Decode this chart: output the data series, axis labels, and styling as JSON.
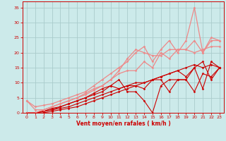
{
  "background_color": "#cceaea",
  "grid_color": "#aacccc",
  "xlabel": "Vent moyen/en rafales ( km/h )",
  "xlabel_color": "#cc0000",
  "tick_color": "#cc0000",
  "xlim": [
    -0.5,
    23.5
  ],
  "ylim": [
    0,
    37
  ],
  "yticks": [
    0,
    5,
    10,
    15,
    20,
    25,
    30,
    35
  ],
  "xticks": [
    0,
    1,
    2,
    3,
    4,
    5,
    6,
    7,
    8,
    9,
    10,
    11,
    12,
    13,
    14,
    15,
    16,
    17,
    18,
    19,
    20,
    21,
    22,
    23
  ],
  "lines": [
    {
      "x": [
        0,
        1,
        2,
        3,
        4,
        5,
        6,
        7,
        8,
        9,
        10,
        11,
        12,
        13,
        14,
        15,
        16,
        17,
        18,
        19,
        20,
        21,
        22,
        23
      ],
      "y": [
        0,
        0,
        0,
        0.5,
        1,
        1.5,
        2,
        3,
        4,
        5,
        6,
        7,
        8,
        9,
        10,
        11,
        12,
        13,
        14,
        15,
        16,
        15,
        16,
        15
      ],
      "color": "#cc0000",
      "lw": 0.8,
      "marker": "D",
      "markersize": 1.5
    },
    {
      "x": [
        0,
        1,
        2,
        3,
        4,
        5,
        6,
        7,
        8,
        9,
        10,
        11,
        12,
        13,
        14,
        15,
        16,
        17,
        18,
        19,
        20,
        21,
        22,
        23
      ],
      "y": [
        0,
        0,
        0.5,
        1,
        1.5,
        2,
        3,
        4,
        5,
        6,
        7,
        8,
        9,
        10,
        10,
        11,
        12,
        13,
        14,
        12,
        15,
        17,
        11,
        15
      ],
      "color": "#cc0000",
      "lw": 0.8,
      "marker": "D",
      "markersize": 1.5
    },
    {
      "x": [
        0,
        1,
        2,
        3,
        4,
        5,
        6,
        7,
        8,
        9,
        10,
        11,
        12,
        13,
        14,
        15,
        16,
        17,
        18,
        19,
        20,
        21,
        22,
        23
      ],
      "y": [
        0,
        0,
        0.5,
        1,
        2,
        3,
        4,
        5,
        6,
        7,
        9,
        11,
        7,
        7,
        4,
        0,
        9,
        11,
        11,
        11,
        7,
        13,
        12,
        15
      ],
      "color": "#cc0000",
      "lw": 0.8,
      "marker": "D",
      "markersize": 1.5
    },
    {
      "x": [
        0,
        1,
        2,
        3,
        4,
        5,
        6,
        7,
        8,
        9,
        10,
        11,
        12,
        13,
        14,
        15,
        16,
        17,
        18,
        19,
        20,
        21,
        22,
        23
      ],
      "y": [
        0,
        0,
        0.5,
        1.5,
        2,
        3,
        4,
        5,
        6.5,
        8,
        9,
        8,
        9,
        9,
        8,
        11,
        11,
        7,
        11,
        11,
        15,
        8,
        17,
        15
      ],
      "color": "#cc0000",
      "lw": 0.8,
      "marker": "D",
      "markersize": 1.5
    },
    {
      "x": [
        0,
        1,
        2,
        3,
        4,
        5,
        6,
        7,
        8,
        9,
        10,
        11,
        12,
        13,
        14,
        15,
        16,
        17,
        18,
        19,
        20,
        21,
        22,
        23
      ],
      "y": [
        4,
        1,
        1,
        2,
        3,
        4,
        5,
        6,
        7.5,
        9,
        11,
        13,
        14,
        14,
        17,
        15,
        20,
        18,
        21,
        21,
        24,
        20,
        25,
        24
      ],
      "color": "#ee8888",
      "lw": 0.9,
      "marker": "D",
      "markersize": 1.5
    },
    {
      "x": [
        0,
        1,
        2,
        3,
        4,
        5,
        6,
        7,
        8,
        9,
        10,
        11,
        12,
        13,
        14,
        15,
        16,
        17,
        18,
        19,
        20,
        21,
        22,
        23
      ],
      "y": [
        4,
        2,
        2.5,
        3,
        4,
        5,
        6,
        7,
        9,
        11,
        13,
        15,
        17,
        20,
        22,
        17,
        21,
        24,
        20,
        24,
        35,
        20,
        24,
        24
      ],
      "color": "#ee8888",
      "lw": 0.9,
      "marker": "D",
      "markersize": 1.5
    },
    {
      "x": [
        0,
        1,
        2,
        3,
        4,
        5,
        6,
        7,
        8,
        9,
        10,
        11,
        12,
        13,
        14,
        15,
        16,
        17,
        18,
        19,
        20,
        21,
        22,
        23
      ],
      "y": [
        0,
        0,
        1,
        2,
        3,
        4,
        5,
        6.5,
        8,
        9,
        11,
        14,
        18,
        21,
        20,
        19,
        19,
        21,
        21,
        21,
        20,
        21,
        22,
        22
      ],
      "color": "#ee8888",
      "lw": 0.9,
      "marker": "D",
      "markersize": 1.5
    }
  ]
}
